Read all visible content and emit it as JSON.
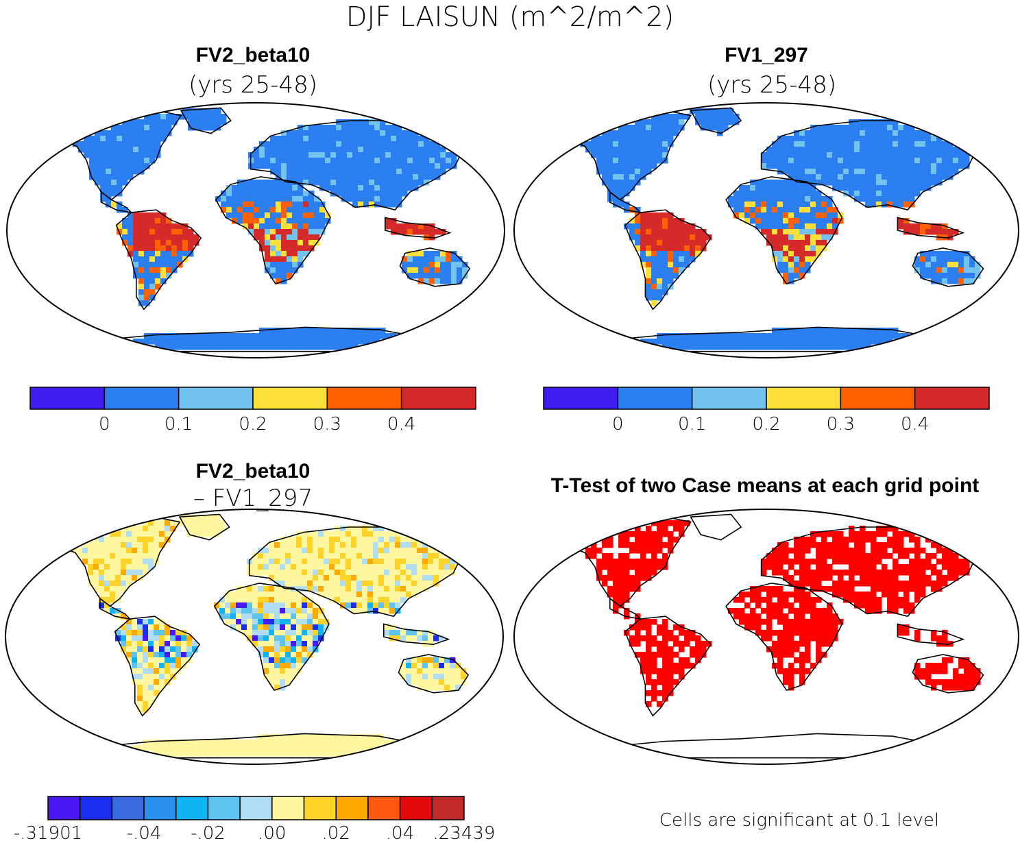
{
  "chart_data": {
    "type": "heatmap",
    "title": "DJF LAISUN (m^2/m^2)",
    "panels": [
      {
        "name": "FV2_beta10",
        "subtitle": "(yrs 25-48)",
        "colorbar": {
          "colors": [
            "#3f1cf0",
            "#2b7ff0",
            "#74c3ee",
            "#ffe03a",
            "#ff6100",
            "#d42a2a"
          ],
          "ticks": [
            "0",
            "0.1",
            "0.2",
            "0.3",
            "0.4"
          ]
        }
      },
      {
        "name": "FV1_297",
        "subtitle": "(yrs 25-48)",
        "colorbar": {
          "colors": [
            "#3f1cf0",
            "#2b7ff0",
            "#74c3ee",
            "#ffe03a",
            "#ff6100",
            "#d42a2a"
          ],
          "ticks": [
            "0",
            "0.1",
            "0.2",
            "0.3",
            "0.4"
          ]
        }
      },
      {
        "name": "FV2_beta10",
        "subtitle": "– FV1_297",
        "colorbar": {
          "colors": [
            "#4a18f2",
            "#1a2ef0",
            "#3a6ae0",
            "#2a90f0",
            "#10b4f4",
            "#60c4f0",
            "#b0dcf4",
            "#fff7a0",
            "#ffd42a",
            "#ffaa00",
            "#ff5a10",
            "#e20a0a",
            "#c42a2a"
          ],
          "ticks": [
            "-.31901",
            "-.04",
            "-.02",
            ".00",
            ".02",
            ".04",
            ".23439"
          ]
        }
      },
      {
        "name": "T-Test of two Case means at each grid point",
        "footnote": "Cells are significant at 0.1 level",
        "sig_color": "#ff0000"
      }
    ]
  }
}
